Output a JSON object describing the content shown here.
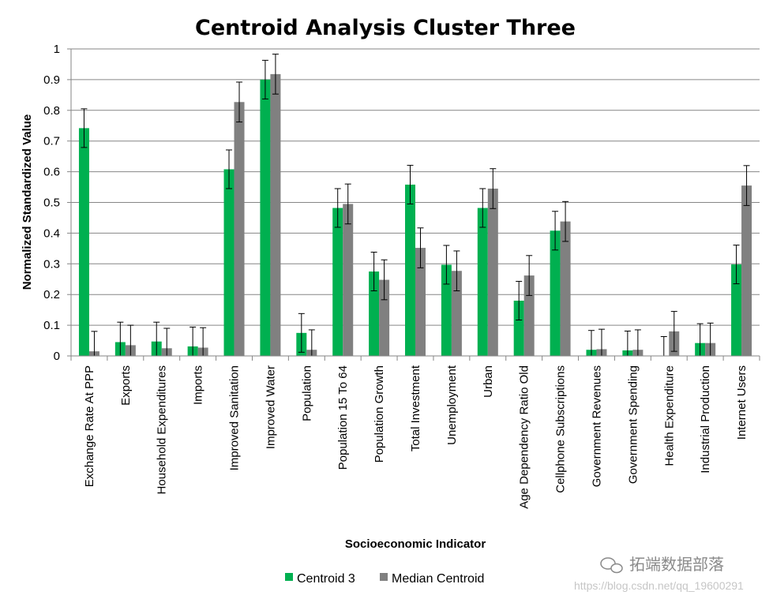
{
  "chart_data": {
    "type": "bar",
    "title": "Centroid Analysis Cluster Three",
    "xlabel": "Socioeconomic Indicator",
    "ylabel": "Normalized Standardized Value",
    "ylim": [
      0,
      1
    ],
    "yticks": [
      "0",
      "0.1",
      "0.2",
      "0.3",
      "0.4",
      "0.5",
      "0.6",
      "0.7",
      "0.8",
      "0.9",
      "1"
    ],
    "grid": true,
    "legend_position": "bottom",
    "categories": [
      "Exchange Rate At PPP",
      "Exports",
      "Household Expenditures",
      "Imports",
      "Improved Sanitation",
      "Improved Water",
      "Population",
      "Population 15 To 64",
      "Population Growth",
      "Total Investment",
      "Unemployment",
      "Urban",
      "Age Dependency Ratio Old",
      "Cellphone Subscriptions",
      "Government Revenues",
      "Government Spending",
      "Health Expenditure",
      "Industrial Production",
      "Internet Users"
    ],
    "series": [
      {
        "name": "Centroid 3",
        "color": "#00b050",
        "values": [
          0.742,
          0.045,
          0.047,
          0.031,
          0.608,
          0.9,
          0.075,
          0.482,
          0.275,
          0.558,
          0.297,
          0.482,
          0.18,
          0.408,
          0.02,
          0.018,
          0.0,
          0.042,
          0.298
        ],
        "error": [
          0.063,
          0.065,
          0.063,
          0.063,
          0.063,
          0.063,
          0.063,
          0.063,
          0.063,
          0.063,
          0.063,
          0.063,
          0.063,
          0.063,
          0.063,
          0.063,
          0.063,
          0.063,
          0.063
        ]
      },
      {
        "name": "Median Centroid",
        "color": "#808080",
        "values": [
          0.015,
          0.035,
          0.025,
          0.027,
          0.827,
          0.918,
          0.02,
          0.495,
          0.248,
          0.352,
          0.277,
          0.545,
          0.262,
          0.438,
          0.022,
          0.02,
          0.08,
          0.042,
          0.555
        ],
        "error": [
          0.065,
          0.065,
          0.065,
          0.065,
          0.065,
          0.065,
          0.065,
          0.065,
          0.065,
          0.065,
          0.065,
          0.065,
          0.065,
          0.065,
          0.065,
          0.065,
          0.065,
          0.065,
          0.065
        ]
      }
    ]
  },
  "watermark": {
    "logo_text": "拓端数据部落",
    "url": "https://blog.csdn.net/qq_19600291",
    "icon": "wechat-icon"
  }
}
